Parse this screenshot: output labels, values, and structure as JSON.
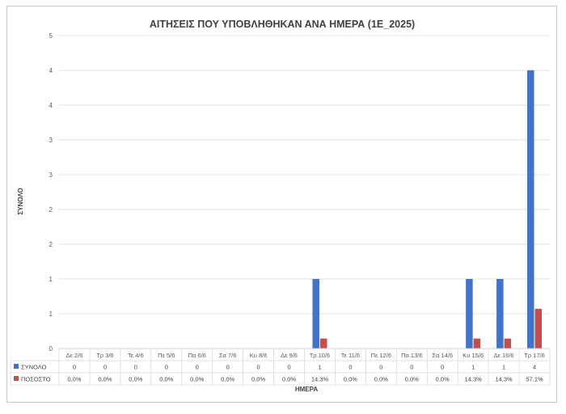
{
  "chart_data": {
    "type": "bar",
    "title": "ΑΙΤΗΣΕΙΣ ΠΟΥ ΥΠΟΒΛΗΘΗΚΑΝ ΑΝΑ ΗΜΕΡΑ (1Ε_2025)",
    "xlabel": "ΗΜΕΡΑ",
    "ylabel": "ΣΥΝΟΛΟ",
    "ylim": [
      0,
      4.5
    ],
    "y_tick_labels": [
      "0",
      "1",
      "1",
      "2",
      "2",
      "3",
      "3",
      "4",
      "4",
      "5"
    ],
    "grid": true,
    "legend": "data-table",
    "categories": [
      "Δε 2/6",
      "Τρ 3/6",
      "Τε 4/6",
      "Πε 5/6",
      "Πα 6/6",
      "Σα 7/6",
      "Κυ 8/6",
      "Δε 9/6",
      "Τρ 10/6",
      "Τε 11/6",
      "Πε 12/6",
      "Πα 13/6",
      "Σα 14/6",
      "Κυ 15/6",
      "Δε 16/6",
      "Τρ 17/6"
    ],
    "series": [
      {
        "name": "ΣΥΝΟΛΟ",
        "color": "#4472C4",
        "values": [
          0,
          0,
          0,
          0,
          0,
          0,
          0,
          0,
          1,
          0,
          0,
          0,
          0,
          1,
          1,
          4
        ],
        "labels": [
          "0",
          "0",
          "0",
          "0",
          "0",
          "0",
          "0",
          "0",
          "1",
          "0",
          "0",
          "0",
          "0",
          "1",
          "1",
          "4"
        ]
      },
      {
        "name": "ΠΟΣΟΣΤΟ",
        "color": "#C0504D",
        "values": [
          0,
          0,
          0,
          0,
          0,
          0,
          0,
          0,
          0.143,
          0,
          0,
          0,
          0,
          0.143,
          0.143,
          0.571
        ],
        "labels": [
          "0,0%",
          "0,0%",
          "0,0%",
          "0,0%",
          "0,0%",
          "0,0%",
          "0,0%",
          "0,0%",
          "14,3%",
          "0,0%",
          "0,0%",
          "0,0%",
          "0,0%",
          "14,3%",
          "14,3%",
          "57,1%"
        ]
      }
    ]
  }
}
